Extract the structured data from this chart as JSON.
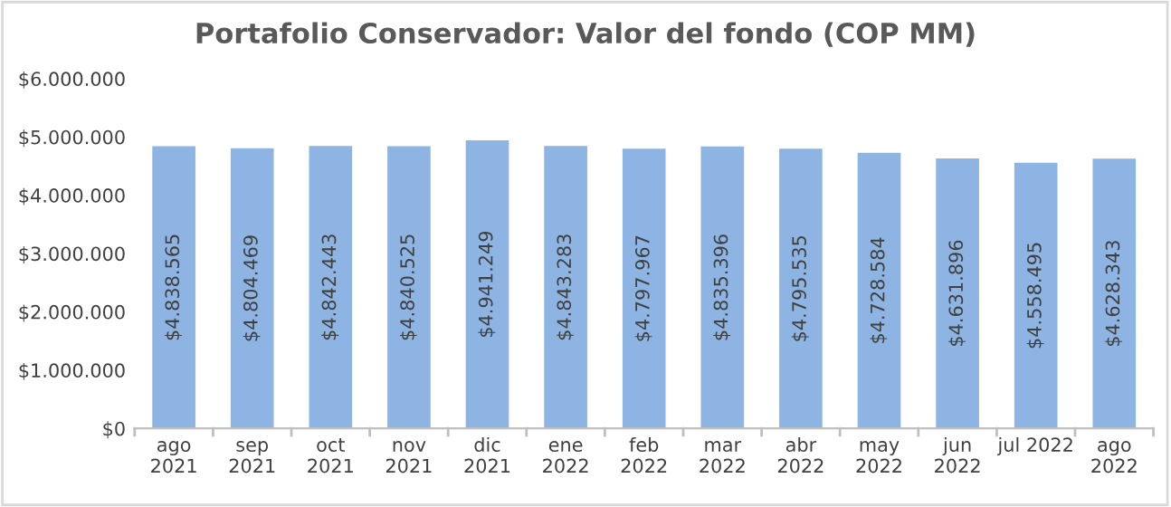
{
  "chart_data": {
    "type": "bar",
    "title": "Portafolio Conservador: Valor del fondo (COP MM)",
    "categories": [
      "ago\n2021",
      "sep\n2021",
      "oct\n2021",
      "nov\n2021",
      "dic\n2021",
      "ene\n2022",
      "feb\n2022",
      "mar\n2022",
      "abr\n2022",
      "may\n2022",
      "jun\n2022",
      "jul 2022",
      "ago\n2022"
    ],
    "values": [
      4838565,
      4804469,
      4842443,
      4840525,
      4941249,
      4843283,
      4797967,
      4835396,
      4795535,
      4728584,
      4631896,
      4558495,
      4628343
    ],
    "value_labels": [
      "$4.838.565",
      "$4.804.469",
      "$4.842.443",
      "$4.840.525",
      "$4.941.249",
      "$4.843.283",
      "$4.797.967",
      "$4.835.396",
      "$4.795.535",
      "$4.728.584",
      "$4.631.896",
      "$4.558.495",
      "$4.628.343"
    ],
    "color": "#8db4e2",
    "ylim": [
      0,
      6000000
    ],
    "yticks": [
      {
        "value": 0,
        "label": "$0"
      },
      {
        "value": 1000000,
        "label": "$1.000.000"
      },
      {
        "value": 2000000,
        "label": "$2.000.000"
      },
      {
        "value": 3000000,
        "label": "$3.000.000"
      },
      {
        "value": 4000000,
        "label": "$4.000.000"
      },
      {
        "value": 5000000,
        "label": "$5.000.000"
      },
      {
        "value": 6000000,
        "label": "$6.000.000"
      }
    ],
    "grid": false,
    "legend": false
  }
}
